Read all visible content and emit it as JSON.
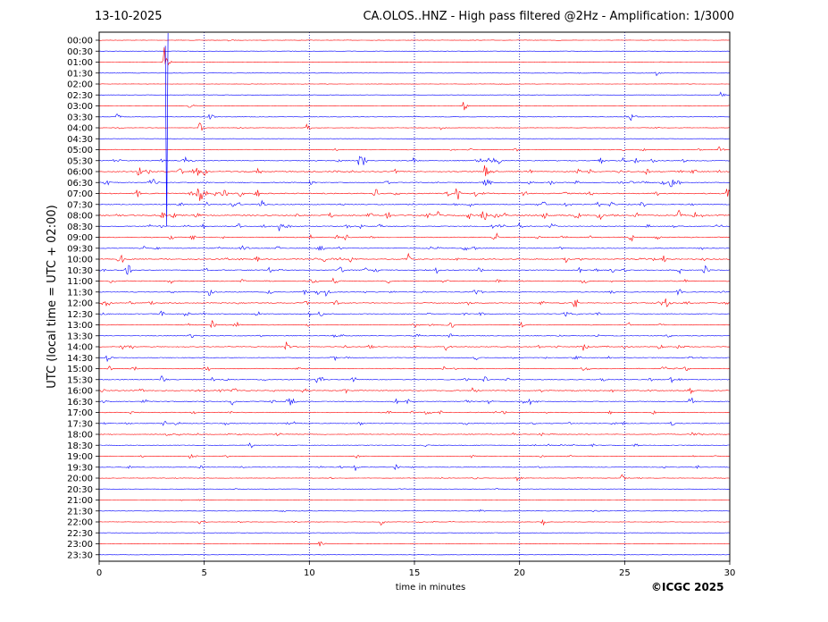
{
  "header": {
    "date": "13-10-2025",
    "title": "CA.OLOS..HNZ - High pass filtered @2Hz - Amplification: 1/3000"
  },
  "footer": {
    "copyright": "©ICGC 2025"
  },
  "colors": {
    "trace_odd": "#ff0000",
    "trace_even": "#0000ff",
    "grid": "#0000aa",
    "frame": "#000000"
  },
  "chart_data": {
    "type": "line",
    "subtype": "helicorder",
    "title": "CA.OLOS..HNZ - High pass filtered @2Hz - Amplification: 1/3000",
    "xlabel": "time in minutes",
    "ylabel": "UTC (local time = UTC + 02:00)",
    "xlim": [
      0,
      30
    ],
    "xticks": [
      0,
      5,
      10,
      15,
      20,
      25,
      30
    ],
    "x_gridlines": [
      5,
      10,
      15,
      20,
      25
    ],
    "grid": "vertical dotted",
    "row_labels": [
      "00:00",
      "00:30",
      "01:00",
      "01:30",
      "02:00",
      "02:30",
      "03:00",
      "03:30",
      "04:00",
      "04:30",
      "05:00",
      "05:30",
      "06:00",
      "06:30",
      "07:00",
      "07:30",
      "08:00",
      "08:30",
      "09:00",
      "09:30",
      "10:00",
      "10:30",
      "11:00",
      "11:30",
      "12:00",
      "12:30",
      "13:00",
      "13:30",
      "14:00",
      "14:30",
      "15:00",
      "15:30",
      "16:00",
      "16:30",
      "17:00",
      "17:30",
      "18:00",
      "18:30",
      "19:00",
      "19:30",
      "20:00",
      "20:30",
      "21:00",
      "21:30",
      "22:00",
      "22:30",
      "23:00",
      "23:30"
    ],
    "trace_colors": [
      "#ff0000",
      "#0000ff"
    ],
    "noise_level": [
      0.15,
      0.1,
      0.1,
      0.1,
      0.1,
      0.1,
      0.15,
      0.2,
      0.2,
      0.1,
      0.4,
      0.8,
      0.8,
      0.8,
      1.0,
      0.8,
      1.0,
      0.8,
      0.7,
      0.7,
      0.8,
      0.8,
      0.7,
      0.6,
      0.7,
      0.6,
      0.6,
      0.5,
      0.6,
      0.5,
      0.6,
      0.7,
      0.7,
      0.7,
      0.6,
      0.6,
      0.5,
      0.4,
      0.4,
      0.4,
      0.3,
      0.2,
      0.15,
      0.2,
      0.25,
      0.2,
      0.15,
      0.1
    ],
    "events": [
      {
        "row": 0,
        "minute": 6.2,
        "amp": 0.3
      },
      {
        "row": 2,
        "minute": 3.1,
        "amp": 3.5
      },
      {
        "row": 3,
        "minute": 26.5,
        "amp": 0.8
      },
      {
        "row": 5,
        "minute": 29.6,
        "amp": 0.8
      },
      {
        "row": 6,
        "minute": 4.3,
        "amp": 1.0
      },
      {
        "row": 6,
        "minute": 17.4,
        "amp": 1.0
      },
      {
        "row": 7,
        "minute": 0.9,
        "amp": 0.8
      },
      {
        "row": 7,
        "minute": 5.3,
        "amp": 0.8
      },
      {
        "row": 7,
        "minute": 25.3,
        "amp": 1.0
      },
      {
        "row": 8,
        "minute": 4.8,
        "amp": 1.5
      },
      {
        "row": 8,
        "minute": 9.9,
        "amp": 0.8
      },
      {
        "row": 8,
        "minute": 16.3,
        "amp": 0.6
      },
      {
        "row": 10,
        "minute": 29.5,
        "amp": 0.9
      },
      {
        "row": 11,
        "minute": 12.4,
        "amp": 0.9
      },
      {
        "row": 11,
        "minute": 14.9,
        "amp": 0.9
      },
      {
        "row": 12,
        "minute": 1.9,
        "amp": 1.2
      },
      {
        "row": 12,
        "minute": 4.7,
        "amp": 1.1
      },
      {
        "row": 12,
        "minute": 18.4,
        "amp": 1.3
      },
      {
        "row": 13,
        "minute": 10.0,
        "amp": 1.0
      },
      {
        "row": 13,
        "minute": 2.6,
        "amp": 1.0
      },
      {
        "row": 14,
        "minute": 4.3,
        "amp": 1.1
      },
      {
        "row": 14,
        "minute": 29.9,
        "amp": 1.1
      },
      {
        "row": 15,
        "minute": 7.7,
        "amp": 1.0
      },
      {
        "row": 16,
        "minute": 3.0,
        "amp": 1.1
      },
      {
        "row": 16,
        "minute": 18.3,
        "amp": 1.2
      },
      {
        "row": 16,
        "minute": 27.6,
        "amp": 1.4
      },
      {
        "row": 17,
        "minute": 8.6,
        "amp": 1.1
      },
      {
        "row": 17,
        "minute": 20.0,
        "amp": 1.0
      },
      {
        "row": 18,
        "minute": 26.5,
        "amp": 0.9
      },
      {
        "row": 20,
        "minute": 11.9,
        "amp": 1.0
      },
      {
        "row": 21,
        "minute": 8.1,
        "amp": 1.0
      },
      {
        "row": 21,
        "minute": 28.8,
        "amp": 1.0
      },
      {
        "row": 22,
        "minute": 11.2,
        "amp": 1.2
      },
      {
        "row": 23,
        "minute": 5.3,
        "amp": 1.0
      },
      {
        "row": 23,
        "minute": 10.8,
        "amp": 0.9
      },
      {
        "row": 24,
        "minute": 1.5,
        "amp": 0.9
      },
      {
        "row": 24,
        "minute": 27.0,
        "amp": 1.0
      },
      {
        "row": 25,
        "minute": 10.5,
        "amp": 1.0
      },
      {
        "row": 25,
        "minute": 4.1,
        "amp": 1.0
      },
      {
        "row": 26,
        "minute": 5.4,
        "amp": 0.9
      },
      {
        "row": 27,
        "minute": 15.1,
        "amp": 0.8
      },
      {
        "row": 28,
        "minute": 8.9,
        "amp": 1.1
      },
      {
        "row": 28,
        "minute": 16.5,
        "amp": 1.0
      },
      {
        "row": 28,
        "minute": 23.1,
        "amp": 1.0
      },
      {
        "row": 29,
        "minute": 0.4,
        "amp": 0.9
      },
      {
        "row": 31,
        "minute": 3.0,
        "amp": 0.8
      },
      {
        "row": 32,
        "minute": 17.8,
        "amp": 0.9
      },
      {
        "row": 33,
        "minute": 20.5,
        "amp": 0.9
      },
      {
        "row": 35,
        "minute": 3.1,
        "amp": 0.9
      },
      {
        "row": 36,
        "minute": 3.2,
        "amp": 0.9
      },
      {
        "row": 38,
        "minute": 4.3,
        "amp": 0.8
      },
      {
        "row": 39,
        "minute": 12.2,
        "amp": 0.8
      },
      {
        "row": 39,
        "minute": 14.1,
        "amp": 0.8
      },
      {
        "row": 40,
        "minute": 19.9,
        "amp": 0.8
      },
      {
        "row": 40,
        "minute": 24.9,
        "amp": 1.1
      },
      {
        "row": 43,
        "minute": 18.1,
        "amp": 0.9
      },
      {
        "row": 43,
        "minute": 23.5,
        "amp": 0.9
      },
      {
        "row": 44,
        "minute": 4.8,
        "amp": 0.8
      },
      {
        "row": 44,
        "minute": 13.4,
        "amp": 0.9
      },
      {
        "row": 44,
        "minute": 21.1,
        "amp": 1.0
      },
      {
        "row": 46,
        "minute": 10.5,
        "amp": 0.6
      }
    ]
  }
}
